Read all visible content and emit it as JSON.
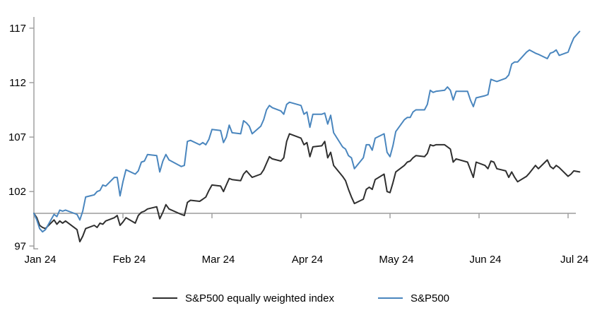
{
  "chart_data": {
    "type": "line",
    "title": "",
    "grid": false,
    "legend_position": "bottom",
    "x_axis": {
      "tick_labels": [
        "Jan 24",
        "Feb 24",
        "Mar 24",
        "Apr 24",
        "May 24",
        "Jun 24",
        "Jul 24"
      ],
      "baseline_value": 100
    },
    "y_axis": {
      "ticks": [
        97,
        102,
        107,
        112,
        117
      ],
      "range": [
        97,
        118
      ]
    },
    "colors": {
      "axis": "#9b9b9b",
      "baseline": "#9b9b9b",
      "equal_weight_line": "#2f2f2f",
      "sp500_line": "#4a86be",
      "text": "#000000",
      "background": "#ffffff"
    },
    "dates": [
      "1-1",
      "1-2",
      "1-3",
      "1-4",
      "1-5",
      "1-8",
      "1-9",
      "1-10",
      "1-11",
      "1-12",
      "1-16",
      "1-17",
      "1-18",
      "1-19",
      "1-22",
      "1-23",
      "1-24",
      "1-25",
      "1-26",
      "1-29",
      "1-30",
      "1-31",
      "2-1",
      "2-2",
      "2-5",
      "2-6",
      "2-7",
      "2-8",
      "2-9",
      "2-12",
      "2-13",
      "2-14",
      "2-15",
      "2-16",
      "2-20",
      "2-21",
      "2-22",
      "2-23",
      "2-26",
      "2-27",
      "2-28",
      "2-29",
      "3-1",
      "3-4",
      "3-5",
      "3-6",
      "3-7",
      "3-8",
      "3-11",
      "3-12",
      "3-13",
      "3-14",
      "3-15",
      "3-18",
      "3-19",
      "3-20",
      "3-21",
      "3-22",
      "3-25",
      "3-26",
      "3-27",
      "3-28",
      "4-1",
      "4-2",
      "4-3",
      "4-4",
      "4-5",
      "4-8",
      "4-9",
      "4-10",
      "4-11",
      "4-12",
      "4-15",
      "4-16",
      "4-17",
      "4-18",
      "4-19",
      "4-22",
      "4-23",
      "4-24",
      "4-25",
      "4-26",
      "4-29",
      "4-30",
      "5-1",
      "5-2",
      "5-3",
      "5-6",
      "5-7",
      "5-8",
      "5-9",
      "5-10",
      "5-13",
      "5-14",
      "5-15",
      "5-16",
      "5-17",
      "5-20",
      "5-21",
      "5-22",
      "5-23",
      "5-24",
      "5-28",
      "5-29",
      "5-30",
      "5-31",
      "6-3",
      "6-4",
      "6-5",
      "6-6",
      "6-7",
      "6-10",
      "6-11",
      "6-12",
      "6-13",
      "6-14",
      "6-17",
      "6-18",
      "6-20",
      "6-21",
      "6-24",
      "6-25",
      "6-26",
      "6-27",
      "6-28",
      "7-1",
      "7-2",
      "7-3",
      "7-5"
    ],
    "series": [
      {
        "name": "S&P500 equally weighted index",
        "color": "#2f2f2f",
        "values": [
          100.0,
          99.6,
          98.9,
          98.7,
          98.6,
          99.4,
          99.0,
          99.3,
          99.1,
          99.3,
          98.5,
          97.4,
          97.9,
          98.6,
          98.9,
          98.7,
          99.1,
          99.0,
          99.3,
          99.6,
          99.8,
          98.9,
          99.2,
          99.6,
          99.1,
          99.8,
          100.1,
          100.2,
          100.4,
          100.6,
          99.5,
          100.1,
          100.8,
          100.4,
          99.9,
          99.8,
          101.0,
          101.2,
          101.1,
          101.3,
          101.5,
          102.1,
          102.6,
          102.5,
          102.0,
          102.6,
          103.2,
          103.1,
          103.0,
          103.6,
          103.9,
          103.6,
          103.3,
          103.6,
          104.0,
          104.6,
          105.2,
          105.0,
          104.8,
          105.1,
          106.6,
          107.3,
          106.9,
          106.3,
          106.5,
          105.2,
          106.1,
          106.2,
          106.6,
          105.1,
          105.6,
          104.4,
          103.4,
          103.0,
          102.2,
          101.5,
          100.9,
          101.3,
          102.2,
          102.4,
          102.2,
          103.1,
          103.6,
          102.0,
          101.9,
          102.8,
          103.8,
          104.4,
          104.7,
          104.8,
          105.1,
          105.3,
          105.2,
          105.5,
          106.3,
          106.2,
          106.3,
          106.3,
          106.1,
          105.9,
          104.7,
          105.0,
          104.7,
          104.0,
          103.3,
          104.7,
          104.4,
          104.1,
          104.8,
          104.7,
          104.1,
          103.9,
          103.3,
          103.8,
          103.3,
          102.9,
          103.4,
          103.7,
          104.4,
          104.1,
          104.9,
          104.3,
          104.1,
          104.4,
          104.2,
          103.4,
          103.6,
          103.9,
          103.8
        ]
      },
      {
        "name": "S&P500",
        "color": "#4a86be",
        "values": [
          100.0,
          99.4,
          98.6,
          98.3,
          98.5,
          99.9,
          99.7,
          100.3,
          100.2,
          100.3,
          99.9,
          99.4,
          100.2,
          101.5,
          101.7,
          102.0,
          102.1,
          102.6,
          102.5,
          103.3,
          103.3,
          101.6,
          102.9,
          104.0,
          103.6,
          103.9,
          104.7,
          104.8,
          105.4,
          105.3,
          103.8,
          104.8,
          105.4,
          104.9,
          104.3,
          104.4,
          106.6,
          106.7,
          106.3,
          106.5,
          106.3,
          106.8,
          107.7,
          107.6,
          106.5,
          107.0,
          108.1,
          107.4,
          107.3,
          108.5,
          108.3,
          108.0,
          107.3,
          108.0,
          108.6,
          109.5,
          109.9,
          109.7,
          109.4,
          109.1,
          110.0,
          110.2,
          109.9,
          109.1,
          109.3,
          107.9,
          109.1,
          109.1,
          109.2,
          108.2,
          109.0,
          107.4,
          106.1,
          105.9,
          105.3,
          105.1,
          104.1,
          105.1,
          106.3,
          106.3,
          105.8,
          106.9,
          107.3,
          105.6,
          105.2,
          106.2,
          107.5,
          108.6,
          108.8,
          108.8,
          109.3,
          109.5,
          109.5,
          110.0,
          111.3,
          111.1,
          111.2,
          111.3,
          111.6,
          111.3,
          110.4,
          111.2,
          111.2,
          110.4,
          109.8,
          110.6,
          110.8,
          110.9,
          112.3,
          112.2,
          112.1,
          112.4,
          112.7,
          113.7,
          113.9,
          113.9,
          114.8,
          115.0,
          114.7,
          114.6,
          114.2,
          114.7,
          114.8,
          115.0,
          114.5,
          114.8,
          115.5,
          116.1,
          116.7
        ]
      }
    ]
  }
}
